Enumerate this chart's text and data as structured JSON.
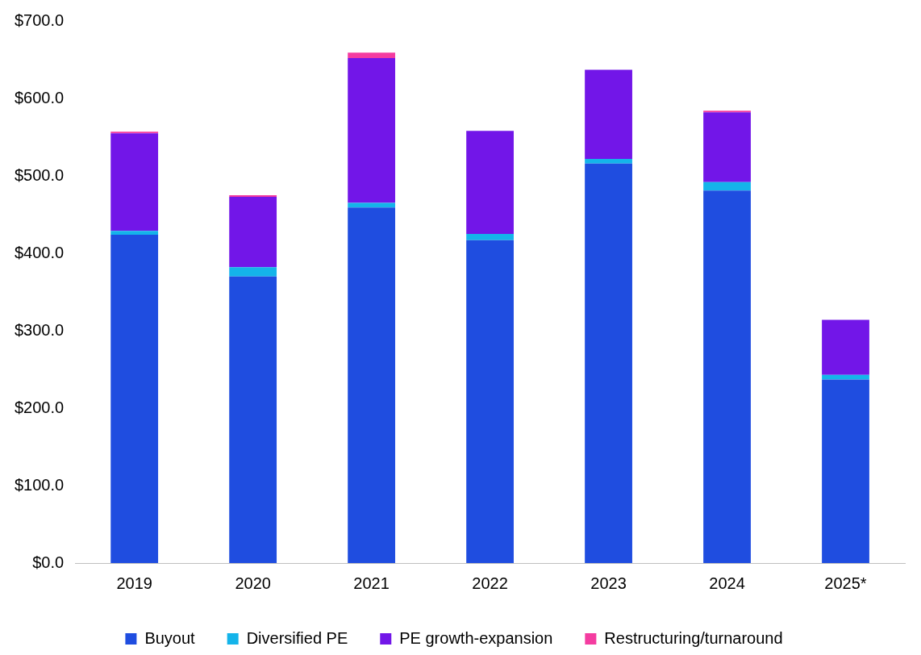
{
  "chart_data": {
    "type": "bar",
    "stacked": true,
    "categories": [
      "2019",
      "2020",
      "2021",
      "2022",
      "2023",
      "2024",
      "2025*"
    ],
    "series": [
      {
        "name": "Buyout",
        "color": "#1f4de0",
        "values": [
          424,
          370,
          459,
          417,
          516,
          481,
          237
        ]
      },
      {
        "name": "Diversified PE",
        "color": "#14b4ea",
        "values": [
          5,
          12,
          6,
          8,
          6,
          11,
          6
        ]
      },
      {
        "name": "PE growth-expansion",
        "color": "#7216e8",
        "values": [
          126,
          91,
          187,
          133,
          115,
          90,
          71
        ]
      },
      {
        "name": "Restructuring/turnaround",
        "color": "#f43ca0",
        "values": [
          2,
          2,
          7,
          null,
          null,
          2,
          null
        ]
      }
    ],
    "ylim": [
      0,
      700
    ],
    "yticks": [
      {
        "value": 0,
        "label": "$0.0"
      },
      {
        "value": 100,
        "label": "$100.0"
      },
      {
        "value": 200,
        "label": "$200.0"
      },
      {
        "value": 300,
        "label": "$300.0"
      },
      {
        "value": 400,
        "label": "$400.0"
      },
      {
        "value": 500,
        "label": "$500.0"
      },
      {
        "value": 600,
        "label": "$600.0"
      },
      {
        "value": 700,
        "label": "$700.0"
      }
    ],
    "grid": false,
    "legend": "bottom"
  }
}
